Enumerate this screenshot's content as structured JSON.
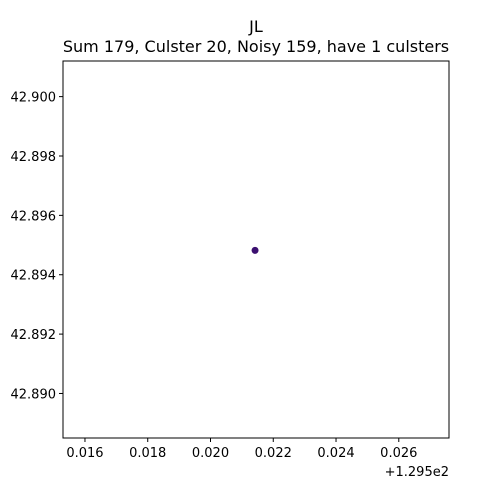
{
  "chart_data": {
    "type": "scatter",
    "title": "JL",
    "subtitle": "Sum 179, Culster 20, Noisy 159, have 1 culsters",
    "xlabel": "",
    "ylabel": "",
    "x_offset_label": "+1.295e2",
    "xlim": [
      0.0153,
      0.0276
    ],
    "ylim": [
      42.8885,
      42.9012
    ],
    "x_ticks": [
      0.016,
      0.018,
      0.02,
      0.022,
      0.024,
      0.026
    ],
    "x_tick_labels": [
      "0.016",
      "0.018",
      "0.020",
      "0.022",
      "0.024",
      "0.026"
    ],
    "y_ticks": [
      42.89,
      42.892,
      42.894,
      42.896,
      42.898,
      42.9
    ],
    "y_tick_labels": [
      "42.890",
      "42.892",
      "42.894",
      "42.896",
      "42.898",
      "42.900"
    ],
    "grid": false,
    "series": [
      {
        "color": "#3b0f70",
        "points": [
          {
            "x": 0.02142,
            "y": 42.89482
          }
        ]
      }
    ]
  }
}
